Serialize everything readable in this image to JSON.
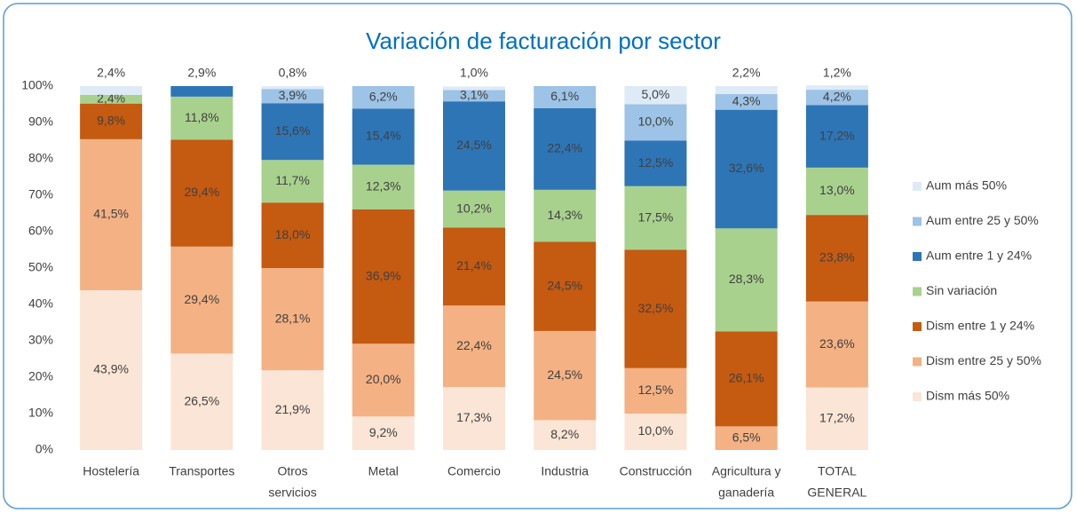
{
  "chart_data": {
    "type": "stacked_bar_100",
    "title": "Variación de facturación por sector",
    "categories": [
      [
        "Hostelería"
      ],
      [
        "Transportes"
      ],
      [
        "Otros",
        "servicios"
      ],
      [
        "Metal"
      ],
      [
        "Comercio"
      ],
      [
        "Industria"
      ],
      [
        "Construcción"
      ],
      [
        "Agricultura y",
        "ganadería"
      ],
      [
        "TOTAL",
        "GENERAL"
      ]
    ],
    "series": [
      {
        "name": "Dism más 50%",
        "color": "#fbe5d6",
        "values": [
          43.9,
          26.5,
          21.9,
          9.2,
          17.3,
          8.2,
          10.0,
          null,
          17.2
        ],
        "value_labels": [
          "43,9%",
          "26,5%",
          "21,9%",
          "9,2%",
          "17,3%",
          "8,2%",
          "10,0%",
          null,
          "17,2%"
        ]
      },
      {
        "name": "Dism entre 25 y 50%",
        "color": "#f4b183",
        "values": [
          41.5,
          29.4,
          28.1,
          20.0,
          22.4,
          24.5,
          12.5,
          6.5,
          23.6
        ],
        "value_labels": [
          "41,5%",
          "29,4%",
          "28,1%",
          "20,0%",
          "22,4%",
          "24,5%",
          "12,5%",
          "6,5%",
          "23,6%"
        ]
      },
      {
        "name": "Dism entre 1 y 24%",
        "color": "#c55a11",
        "values": [
          9.8,
          29.4,
          18.0,
          36.9,
          21.4,
          24.5,
          32.5,
          26.1,
          23.8
        ],
        "value_labels": [
          "9,8%",
          "29,4%",
          "18,0%",
          "36,9%",
          "21,4%",
          "24,5%",
          "32,5%",
          "26,1%",
          "23,8%"
        ]
      },
      {
        "name": "Sin variación",
        "color": "#a9d18e",
        "values": [
          2.4,
          11.8,
          11.7,
          12.3,
          10.2,
          14.3,
          17.5,
          28.3,
          13.0
        ],
        "value_labels": [
          "2,4%",
          "11,8%",
          "11,7%",
          "12,3%",
          "10,2%",
          "14,3%",
          "17,5%",
          "28,3%",
          "13,0%"
        ]
      },
      {
        "name": "Aum entre 1 y 24%",
        "color": "#2e75b6",
        "values": [
          null,
          2.9,
          15.6,
          15.4,
          24.5,
          22.4,
          12.5,
          32.6,
          17.2
        ],
        "value_labels": [
          null,
          "2,9%",
          "15,6%",
          "15,4%",
          "24,5%",
          "22,4%",
          "12,5%",
          "32,6%",
          "17,2%"
        ]
      },
      {
        "name": "Aum entre 25 y 50%",
        "color": "#9dc3e6",
        "values": [
          null,
          null,
          3.9,
          6.2,
          3.1,
          6.1,
          10.0,
          4.3,
          4.2
        ],
        "value_labels": [
          null,
          null,
          "3,9%",
          "6,2%",
          "3,1%",
          "6,1%",
          "10,0%",
          "4,3%",
          "4,2%"
        ]
      },
      {
        "name": "Aum más 50%",
        "color": "#deebf7",
        "values": [
          2.4,
          null,
          0.8,
          null,
          1.0,
          null,
          5.0,
          2.2,
          1.2
        ],
        "value_labels": [
          "2,4%",
          null,
          "0,8%",
          null,
          "1,0%",
          null,
          "5,0%",
          "2,2%",
          "1,2%"
        ]
      }
    ],
    "ylim": [
      0,
      100
    ],
    "yticks": [
      {
        "value": 0,
        "label": "0%"
      },
      {
        "value": 10,
        "label": "10%"
      },
      {
        "value": 20,
        "label": "20%"
      },
      {
        "value": 30,
        "label": "30%"
      },
      {
        "value": 40,
        "label": "40%"
      },
      {
        "value": 50,
        "label": "50%"
      },
      {
        "value": 60,
        "label": "60%"
      },
      {
        "value": 70,
        "label": "70%"
      },
      {
        "value": 80,
        "label": "80%"
      },
      {
        "value": 90,
        "label": "90%"
      },
      {
        "value": 100,
        "label": "100%"
      }
    ],
    "grid": false,
    "legend": "right"
  }
}
